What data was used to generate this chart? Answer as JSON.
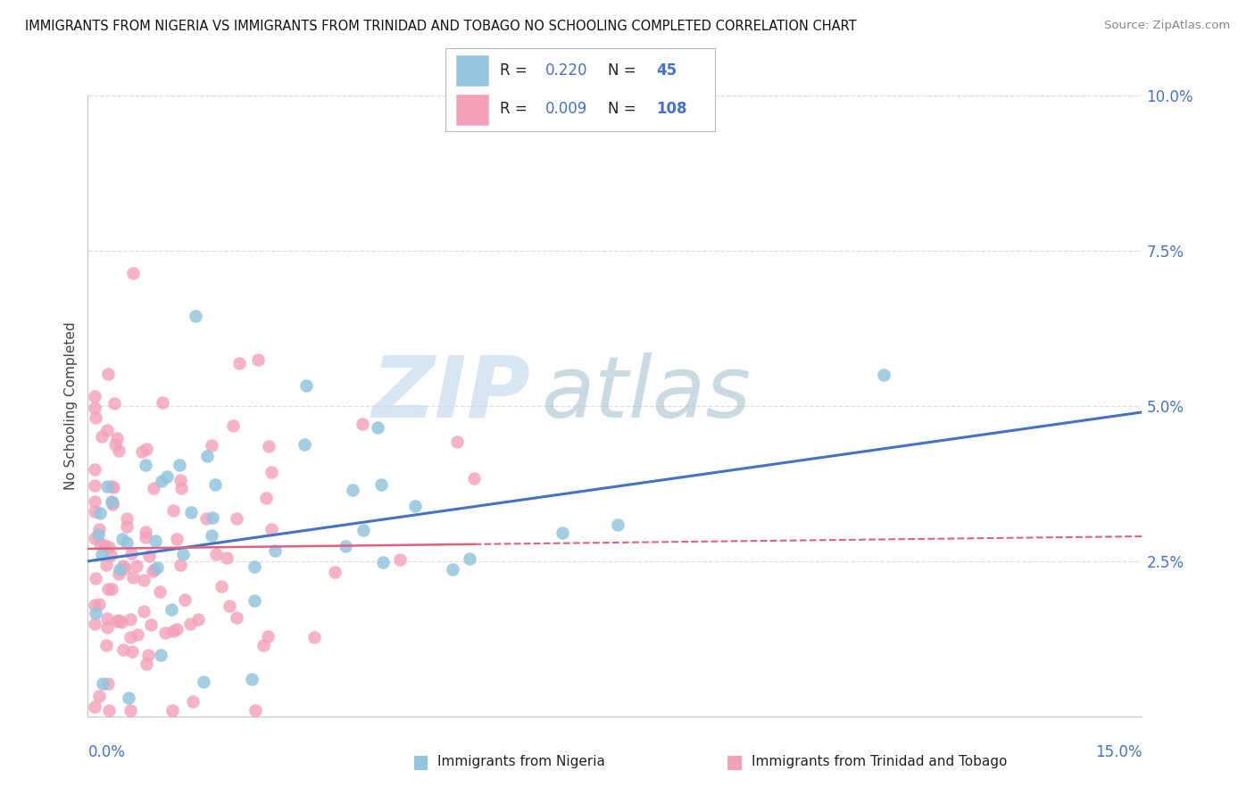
{
  "title": "IMMIGRANTS FROM NIGERIA VS IMMIGRANTS FROM TRINIDAD AND TOBAGO NO SCHOOLING COMPLETED CORRELATION CHART",
  "source": "Source: ZipAtlas.com",
  "ylabel": "No Schooling Completed",
  "xlim": [
    0.0,
    0.15
  ],
  "ylim": [
    0.0,
    0.1
  ],
  "yticks": [
    0.025,
    0.05,
    0.075,
    0.1
  ],
  "ytick_labels": [
    "2.5%",
    "5.0%",
    "7.5%",
    "10.0%"
  ],
  "legend_label1": "Immigrants from Nigeria",
  "legend_label2": "Immigrants from Trinidad and Tobago",
  "R1": "0.220",
  "N1": "45",
  "R2": "0.009",
  "N2": "108",
  "color_blue": "#92C5DE",
  "color_pink": "#F4A0B8",
  "color_blue_dark": "#4472C4",
  "color_pink_dark": "#E06080",
  "background_color": "#FFFFFF",
  "watermark_zip": "ZIP",
  "watermark_atlas": "atlas",
  "grid_color": "#DDDDDD",
  "spine_color": "#CCCCCC"
}
